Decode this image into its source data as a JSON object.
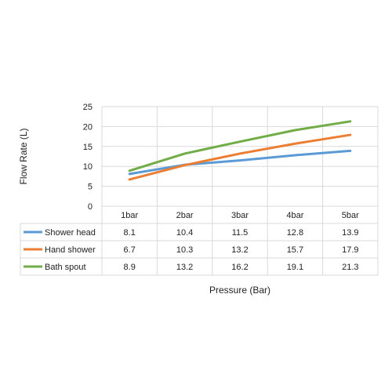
{
  "chart_data": {
    "type": "line",
    "categories": [
      "1bar",
      "2bar",
      "3bar",
      "4bar",
      "5bar"
    ],
    "series": [
      {
        "name": "Shower head",
        "color": "#5b9bd5",
        "values": [
          8.1,
          10.4,
          11.5,
          12.8,
          13.9
        ]
      },
      {
        "name": "Hand shower",
        "color": "#ed7d31",
        "values": [
          6.7,
          10.3,
          13.2,
          15.7,
          17.9
        ]
      },
      {
        "name": "Bath spout",
        "color": "#70ad47",
        "values": [
          8.9,
          13.2,
          16.2,
          19.1,
          21.3
        ]
      }
    ],
    "ylabel": "Flow Rate (L)",
    "xlabel": "Pressure (Bar)",
    "ylim": [
      0,
      25
    ],
    "yticks": [
      "0",
      "5",
      "10",
      "15",
      "20",
      "25"
    ],
    "grid": true,
    "data_table": true,
    "table_values": [
      [
        "8.1",
        "10.4",
        "11.5",
        "12.8",
        "13.9"
      ],
      [
        "6.7",
        "10.3",
        "13.2",
        "15.7",
        "17.9"
      ],
      [
        "8.9",
        "13.2",
        "16.2",
        "19.1",
        "21.3"
      ]
    ]
  }
}
